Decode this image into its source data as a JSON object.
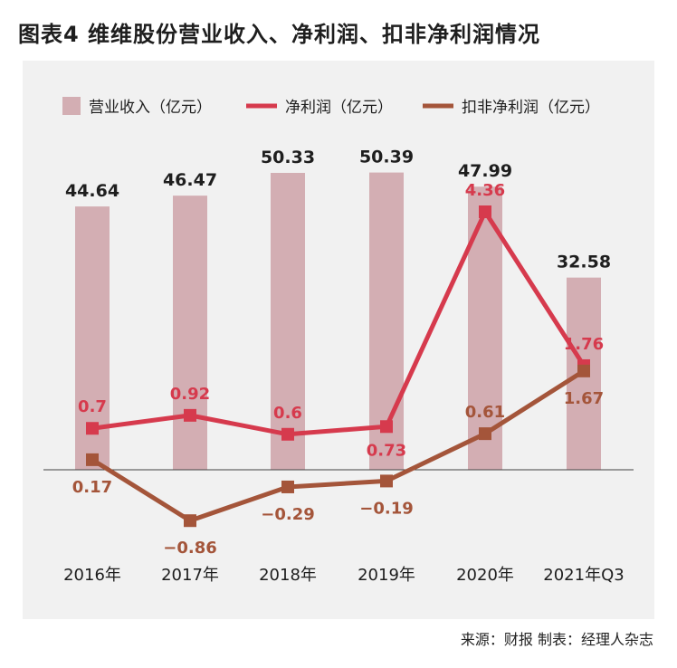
{
  "title": "图表4  维维股份营业收入、净利润、扣非净利润情况",
  "source": "来源：财报   制表：经理人杂志",
  "colors": {
    "bar": "#d3aeb3",
    "net_profit": "#d63a4d",
    "adj_net_profit": "#a4553a",
    "text": "#1e1e1e",
    "panel": "#f1f1f1"
  },
  "chart_data": {
    "type": "bar",
    "categories": [
      "2016年",
      "2017年",
      "2018年",
      "2019年",
      "2020年",
      "2021年Q3"
    ],
    "legend_position": "top",
    "grid": false,
    "series": [
      {
        "name": "营业收入（亿元）",
        "type": "bar",
        "values": [
          44.64,
          46.47,
          50.33,
          50.39,
          47.99,
          32.58
        ],
        "labels": [
          "44.64",
          "46.47",
          "50.33",
          "50.39",
          "47.99",
          "32.58"
        ]
      },
      {
        "name": "净利润（亿元）",
        "type": "line",
        "values": [
          0.7,
          0.92,
          0.6,
          0.73,
          4.36,
          1.76
        ],
        "labels": [
          "0.7",
          "0.92",
          "0.6",
          "0.73",
          "4.36",
          "1.76"
        ]
      },
      {
        "name": "扣非净利润（亿元）",
        "type": "line",
        "values": [
          0.17,
          -0.86,
          -0.29,
          -0.19,
          0.61,
          1.67
        ],
        "labels": [
          "0.17",
          "−0.86",
          "−0.29",
          "−0.19",
          "0.61",
          "1.67"
        ]
      }
    ]
  }
}
